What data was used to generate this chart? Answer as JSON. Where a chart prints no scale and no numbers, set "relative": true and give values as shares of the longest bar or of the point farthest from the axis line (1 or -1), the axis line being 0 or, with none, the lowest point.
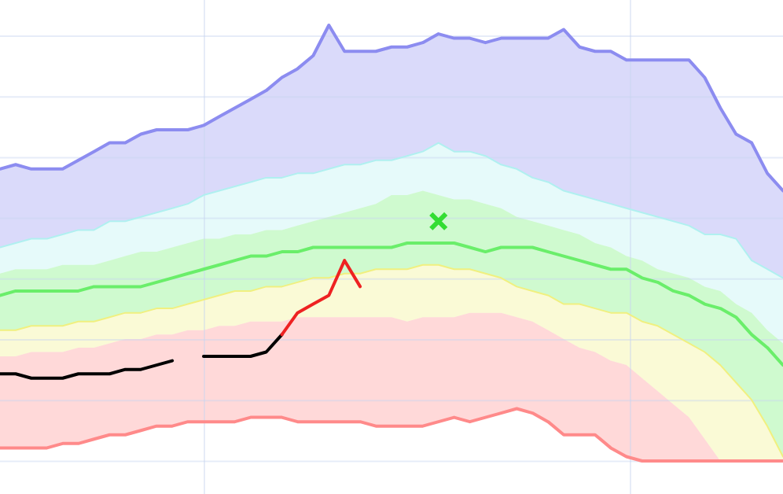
{
  "chart_data": {
    "type": "line",
    "relative": true,
    "grid": true,
    "legend": false,
    "tick_labels": false,
    "categories": [
      null,
      null,
      null,
      null,
      null,
      null,
      null,
      null,
      null,
      null,
      null,
      null,
      null,
      null,
      null,
      null,
      null,
      null,
      null,
      null,
      null,
      null,
      null,
      null,
      null,
      null,
      null,
      null,
      null,
      null,
      null,
      null,
      null,
      null,
      null,
      null,
      null,
      null,
      null,
      null,
      null,
      null,
      null,
      null,
      null,
      null,
      null,
      null,
      null,
      null,
      null
    ],
    "series": [
      {
        "color": "#8c8cf0",
        "values": [
          0.67,
          0.68,
          0.67,
          0.67,
          0.67,
          0.69,
          0.71,
          0.73,
          0.73,
          0.75,
          0.76,
          0.76,
          0.76,
          0.77,
          0.79,
          0.81,
          0.83,
          0.85,
          0.88,
          0.9,
          0.93,
          1.0,
          0.94,
          0.94,
          0.94,
          0.95,
          0.95,
          0.96,
          0.98,
          0.97,
          0.97,
          0.96,
          0.97,
          0.97,
          0.97,
          0.97,
          0.99,
          0.95,
          0.94,
          0.94,
          0.92,
          0.92,
          0.92,
          0.92,
          0.92,
          0.88,
          0.81,
          0.75,
          0.73,
          0.66,
          0.62
        ],
        "lower": [
          0.49,
          0.5,
          0.51,
          0.51,
          0.52,
          0.53,
          0.53,
          0.55,
          0.55,
          0.56,
          0.57,
          0.58,
          0.59,
          0.61,
          0.62,
          0.63,
          0.64,
          0.65,
          0.65,
          0.66,
          0.66,
          0.67,
          0.68,
          0.68,
          0.69,
          0.69,
          0.7,
          0.71,
          0.73,
          0.71,
          0.71,
          0.7,
          0.68,
          0.67,
          0.65,
          0.64,
          0.62,
          0.61,
          0.6,
          0.59,
          0.58,
          0.57,
          0.56,
          0.55,
          0.54,
          0.52,
          0.52,
          0.51,
          0.46,
          0.44,
          0.42
        ],
        "upper": [
          0.67,
          0.68,
          0.67,
          0.67,
          0.67,
          0.69,
          0.71,
          0.73,
          0.73,
          0.75,
          0.76,
          0.76,
          0.76,
          0.77,
          0.79,
          0.81,
          0.83,
          0.85,
          0.88,
          0.9,
          0.93,
          1.0,
          0.94,
          0.94,
          0.94,
          0.95,
          0.95,
          0.96,
          0.98,
          0.97,
          0.97,
          0.96,
          0.97,
          0.97,
          0.97,
          0.97,
          0.99,
          0.95,
          0.94,
          0.94,
          0.92,
          0.92,
          0.92,
          0.92,
          0.92,
          0.88,
          0.81,
          0.75,
          0.73,
          0.66,
          0.62
        ]
      },
      {
        "color": "#b0f0f0",
        "values": [
          0.49,
          0.5,
          0.51,
          0.51,
          0.52,
          0.53,
          0.53,
          0.55,
          0.55,
          0.56,
          0.57,
          0.58,
          0.59,
          0.61,
          0.62,
          0.63,
          0.64,
          0.65,
          0.65,
          0.66,
          0.66,
          0.67,
          0.68,
          0.68,
          0.69,
          0.69,
          0.7,
          0.71,
          0.73,
          0.71,
          0.71,
          0.7,
          0.68,
          0.67,
          0.65,
          0.64,
          0.62,
          0.61,
          0.6,
          0.59,
          0.58,
          0.57,
          0.56,
          0.55,
          0.54,
          0.52,
          0.52,
          0.51,
          0.46,
          0.44,
          0.42
        ],
        "lower": [
          0.43,
          0.44,
          0.44,
          0.44,
          0.45,
          0.45,
          0.45,
          0.46,
          0.47,
          0.48,
          0.48,
          0.49,
          0.5,
          0.51,
          0.51,
          0.52,
          0.52,
          0.53,
          0.53,
          0.54,
          0.55,
          0.56,
          0.57,
          0.58,
          0.59,
          0.61,
          0.61,
          0.62,
          0.61,
          0.6,
          0.6,
          0.59,
          0.58,
          0.56,
          0.55,
          0.54,
          0.53,
          0.52,
          0.5,
          0.49,
          0.47,
          0.46,
          0.44,
          0.43,
          0.42,
          0.4,
          0.39,
          0.36,
          0.34,
          0.3,
          0.27
        ],
        "upper": [
          0.49,
          0.5,
          0.51,
          0.51,
          0.52,
          0.53,
          0.53,
          0.55,
          0.55,
          0.56,
          0.57,
          0.58,
          0.59,
          0.61,
          0.62,
          0.63,
          0.64,
          0.65,
          0.65,
          0.66,
          0.66,
          0.67,
          0.68,
          0.68,
          0.69,
          0.69,
          0.7,
          0.71,
          0.73,
          0.71,
          0.71,
          0.7,
          0.68,
          0.67,
          0.65,
          0.64,
          0.62,
          0.61,
          0.6,
          0.59,
          0.58,
          0.57,
          0.56,
          0.55,
          0.54,
          0.52,
          0.52,
          0.51,
          0.46,
          0.44,
          0.42
        ]
      },
      {
        "color": "#6aee6a",
        "values": [
          0.38,
          0.39,
          0.39,
          0.39,
          0.39,
          0.39,
          0.4,
          0.4,
          0.4,
          0.4,
          0.41,
          0.42,
          0.43,
          0.44,
          0.45,
          0.46,
          0.47,
          0.47,
          0.48,
          0.48,
          0.49,
          0.49,
          0.49,
          0.49,
          0.49,
          0.49,
          0.5,
          0.5,
          0.5,
          0.5,
          0.49,
          0.48,
          0.49,
          0.49,
          0.49,
          0.48,
          0.47,
          0.46,
          0.45,
          0.44,
          0.44,
          0.42,
          0.41,
          0.39,
          0.38,
          0.36,
          0.35,
          0.33,
          0.29,
          0.26,
          0.22
        ],
        "lower": [
          0.3,
          0.3,
          0.31,
          0.31,
          0.31,
          0.32,
          0.32,
          0.33,
          0.34,
          0.34,
          0.35,
          0.35,
          0.36,
          0.37,
          0.38,
          0.39,
          0.39,
          0.4,
          0.4,
          0.41,
          0.42,
          0.42,
          0.43,
          0.43,
          0.44,
          0.44,
          0.44,
          0.45,
          0.45,
          0.44,
          0.44,
          0.43,
          0.42,
          0.4,
          0.39,
          0.38,
          0.36,
          0.36,
          0.35,
          0.34,
          0.34,
          0.32,
          0.31,
          0.29,
          0.27,
          0.25,
          0.22,
          0.18,
          0.14,
          0.08,
          0.01
        ],
        "upper": [
          0.43,
          0.44,
          0.44,
          0.44,
          0.45,
          0.45,
          0.45,
          0.46,
          0.47,
          0.48,
          0.48,
          0.49,
          0.5,
          0.51,
          0.51,
          0.52,
          0.52,
          0.53,
          0.53,
          0.54,
          0.55,
          0.56,
          0.57,
          0.58,
          0.59,
          0.61,
          0.61,
          0.62,
          0.61,
          0.6,
          0.6,
          0.59,
          0.58,
          0.56,
          0.55,
          0.54,
          0.53,
          0.52,
          0.5,
          0.49,
          0.47,
          0.46,
          0.44,
          0.43,
          0.42,
          0.4,
          0.39,
          0.36,
          0.34,
          0.3,
          0.27
        ]
      },
      {
        "color": "#f0f080",
        "values": [
          0.3,
          0.3,
          0.31,
          0.31,
          0.31,
          0.32,
          0.32,
          0.33,
          0.34,
          0.34,
          0.35,
          0.35,
          0.36,
          0.37,
          0.38,
          0.39,
          0.39,
          0.4,
          0.4,
          0.41,
          0.42,
          0.42,
          0.43,
          0.43,
          0.44,
          0.44,
          0.44,
          0.45,
          0.45,
          0.44,
          0.44,
          0.43,
          0.42,
          0.4,
          0.39,
          0.38,
          0.36,
          0.36,
          0.35,
          0.34,
          0.34,
          0.32,
          0.31,
          0.29,
          0.27,
          0.25,
          0.22,
          0.18,
          0.14,
          0.08,
          0.01
        ],
        "lower": [
          0.24,
          0.24,
          0.25,
          0.25,
          0.25,
          0.26,
          0.26,
          0.27,
          0.28,
          0.28,
          0.29,
          0.29,
          0.3,
          0.3,
          0.31,
          0.31,
          0.32,
          0.32,
          0.32,
          0.33,
          0.33,
          0.33,
          0.33,
          0.33,
          0.33,
          0.33,
          0.32,
          0.33,
          0.33,
          0.33,
          0.34,
          0.34,
          0.34,
          0.33,
          0.32,
          0.3,
          0.28,
          0.26,
          0.25,
          0.23,
          0.22,
          0.19,
          0.16,
          0.13,
          0.1,
          0.05,
          0,
          0,
          0,
          0,
          0
        ],
        "upper": [
          0.3,
          0.3,
          0.31,
          0.31,
          0.31,
          0.32,
          0.32,
          0.33,
          0.34,
          0.34,
          0.35,
          0.35,
          0.36,
          0.37,
          0.38,
          0.39,
          0.39,
          0.4,
          0.4,
          0.41,
          0.42,
          0.42,
          0.43,
          0.43,
          0.44,
          0.44,
          0.44,
          0.45,
          0.45,
          0.44,
          0.44,
          0.43,
          0.42,
          0.4,
          0.39,
          0.38,
          0.36,
          0.36,
          0.35,
          0.34,
          0.34,
          0.32,
          0.31,
          0.29,
          0.27,
          0.25,
          0.22,
          0.18,
          0.14,
          0.08,
          0.01
        ]
      },
      {
        "color": "#ff8a8a",
        "values": [
          0.03,
          0.03,
          0.03,
          0.03,
          0.04,
          0.04,
          0.05,
          0.06,
          0.06,
          0.07,
          0.08,
          0.08,
          0.09,
          0.09,
          0.09,
          0.09,
          0.1,
          0.1,
          0.1,
          0.09,
          0.09,
          0.09,
          0.09,
          0.09,
          0.08,
          0.08,
          0.08,
          0.08,
          0.09,
          0.1,
          0.09,
          0.1,
          0.11,
          0.12,
          0.11,
          0.09,
          0.06,
          0.06,
          0.06,
          0.03,
          0.01,
          0,
          0,
          0,
          0,
          0,
          0,
          0,
          0,
          0,
          0
        ],
        "lower": [
          0.03,
          0.03,
          0.03,
          0.03,
          0.04,
          0.04,
          0.05,
          0.06,
          0.06,
          0.07,
          0.08,
          0.08,
          0.09,
          0.09,
          0.09,
          0.09,
          0.1,
          0.1,
          0.1,
          0.09,
          0.09,
          0.09,
          0.09,
          0.09,
          0.08,
          0.08,
          0.08,
          0.08,
          0.09,
          0.1,
          0.09,
          0.1,
          0.11,
          0.12,
          0.11,
          0.09,
          0.06,
          0.06,
          0.06,
          0.03,
          0.01,
          0,
          0,
          0,
          0,
          0,
          0,
          0,
          0,
          0,
          0
        ],
        "upper": [
          0.24,
          0.24,
          0.25,
          0.25,
          0.25,
          0.26,
          0.26,
          0.27,
          0.28,
          0.28,
          0.29,
          0.29,
          0.3,
          0.3,
          0.31,
          0.31,
          0.32,
          0.32,
          0.32,
          0.33,
          0.33,
          0.33,
          0.33,
          0.33,
          0.33,
          0.33,
          0.32,
          0.33,
          0.33,
          0.33,
          0.34,
          0.34,
          0.34,
          0.33,
          0.32,
          0.3,
          0.28,
          0.26,
          0.25,
          0.23,
          0.22,
          0.19,
          0.16,
          0.13,
          0.1,
          0.05,
          0,
          0,
          0,
          0,
          0
        ]
      },
      {
        "color": "#000000",
        "values": [
          0.2,
          0.2,
          0.19,
          0.19,
          0.19,
          0.2,
          0.2,
          0.2,
          0.21,
          0.21,
          0.22,
          0.23,
          null,
          0.24,
          0.24,
          0.24,
          0.24,
          0.25,
          0.29,
          null,
          null,
          null,
          null,
          null,
          null,
          null,
          null,
          null,
          null,
          null,
          null,
          null,
          null,
          null,
          null,
          null,
          null,
          null,
          null,
          null,
          null,
          null,
          null,
          null,
          null,
          null,
          null,
          null,
          null,
          null,
          null
        ]
      },
      {
        "color": "#ee2222",
        "values": [
          null,
          null,
          null,
          null,
          null,
          null,
          null,
          null,
          null,
          null,
          null,
          null,
          null,
          null,
          null,
          null,
          null,
          null,
          0.29,
          0.34,
          0.36,
          0.38,
          0.46,
          0.4,
          null,
          null,
          null,
          null,
          null,
          null,
          null,
          null,
          null,
          null,
          null,
          null,
          null,
          null,
          null,
          null,
          null,
          null,
          null,
          null,
          null,
          null,
          null,
          null,
          null,
          null,
          null
        ]
      },
      {
        "color": "#33dd33",
        "marker": "cross",
        "values": [
          null,
          null,
          null,
          null,
          null,
          null,
          null,
          null,
          null,
          null,
          null,
          null,
          null,
          null,
          null,
          null,
          null,
          null,
          null,
          null,
          null,
          null,
          null,
          null,
          null,
          null,
          null,
          null,
          0.55,
          null,
          null,
          null,
          null,
          null,
          null,
          null,
          null,
          null,
          null,
          null,
          null,
          null,
          null,
          null,
          null,
          null,
          null,
          null,
          null,
          null,
          null
        ]
      }
    ]
  }
}
